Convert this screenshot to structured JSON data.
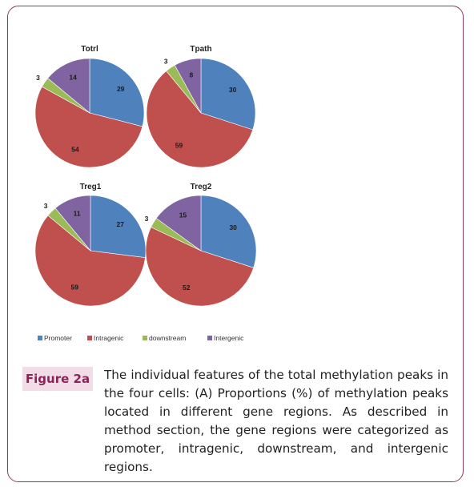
{
  "figure": {
    "label": "Figure 2a",
    "caption": "The individual features of the total methylation peaks in the four cells: (A) Proportions (%) of methylation peaks located in different gene regions. As described in method section, the gene regions were categorized as promoter, intragenic, downstream, and intergenic regions."
  },
  "colors": {
    "promoter": "#4f81bd",
    "intragenic": "#c0504d",
    "downstream": "#9bbb59",
    "intergenic": "#8064a2",
    "frame": "#8b3a62",
    "label_bg": "#f2dce8",
    "label_text": "#8b2457"
  },
  "chart_data": [
    {
      "type": "pie",
      "title": "Totrl",
      "categories": [
        "Promoter",
        "Intragenic",
        "downstream",
        "Intergenic"
      ],
      "values": [
        29,
        54,
        3,
        14
      ]
    },
    {
      "type": "pie",
      "title": "Tpath",
      "categories": [
        "Promoter",
        "Intragenic",
        "downstream",
        "Intergenic"
      ],
      "values": [
        30,
        59,
        3,
        8
      ]
    },
    {
      "type": "pie",
      "title": "Treg1",
      "categories": [
        "Promoter",
        "Intragenic",
        "downstream",
        "Intergenic"
      ],
      "values": [
        27,
        59,
        3,
        11
      ]
    },
    {
      "type": "pie",
      "title": "Treg2",
      "categories": [
        "Promoter",
        "Intragenic",
        "downstream",
        "Intergenic"
      ],
      "values": [
        30,
        52,
        3,
        15
      ]
    }
  ],
  "legend": [
    "Promoter",
    "Intragenic",
    "downstream",
    "Intergenic"
  ]
}
